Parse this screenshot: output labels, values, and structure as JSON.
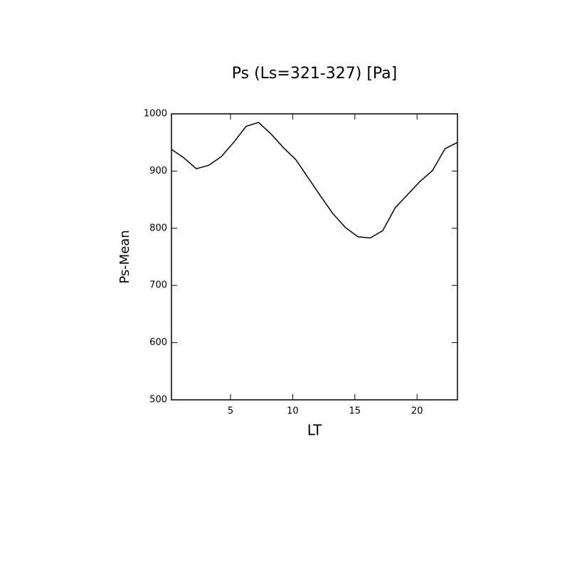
{
  "chart_data": {
    "type": "line",
    "title": "Ps (Ls=321-327) [Pa]",
    "x_label": "LT",
    "y_label": "Ps-Mean",
    "x": [
      0.25,
      1.25,
      2.25,
      3.25,
      4.25,
      5.25,
      6.25,
      7.25,
      8.25,
      9.25,
      10.25,
      11.25,
      12.25,
      13.25,
      14.25,
      15.25,
      16.25,
      17.25,
      18.25,
      19.25,
      20.25,
      21.25,
      22.25,
      23.25
    ],
    "series": [
      {
        "color": "#000000",
        "values": [
          938,
          923,
          904,
          910,
          925,
          950,
          978,
          985,
          965,
          941,
          920,
          888,
          856,
          825,
          801,
          785,
          783,
          796,
          836,
          859,
          882,
          901,
          939,
          950
        ]
      }
    ],
    "xlim": [
      0.25,
      23.25
    ],
    "xticks": [
      5,
      10,
      15,
      20
    ],
    "ylim": [
      500,
      1000
    ],
    "yticks": [
      500,
      600,
      700,
      800,
      900,
      1000
    ]
  }
}
